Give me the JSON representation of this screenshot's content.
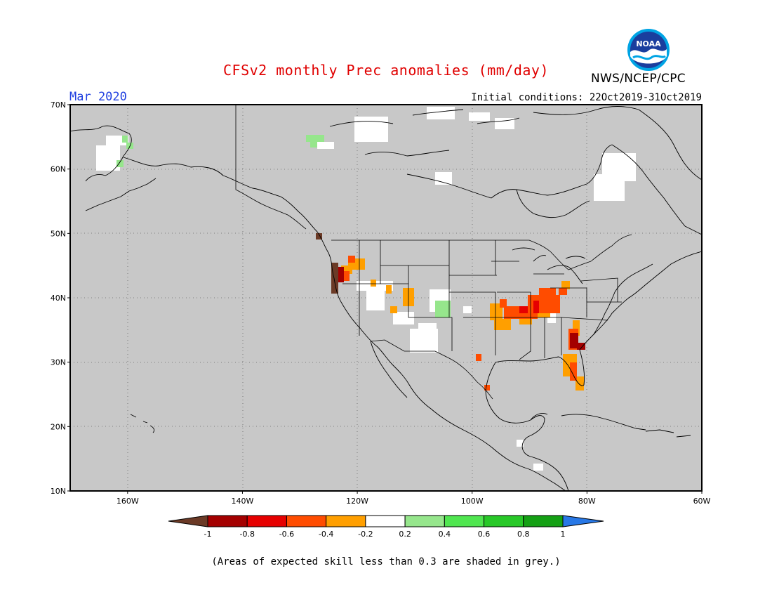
{
  "header": {
    "title": "CFSv2 monthly Prec anomalies (mm/day)",
    "org": "NWS/NCEP/CPC",
    "logo_text": "NOAA",
    "month": "Mar 2020",
    "initial_conditions": "Initial conditions: 22Oct2019-31Oct2019"
  },
  "map": {
    "lon_range": [
      -170,
      -60
    ],
    "lat_range": [
      10,
      70
    ],
    "lat_labels": [
      "70N",
      "60N",
      "50N",
      "40N",
      "30N",
      "20N",
      "10N"
    ],
    "lon_labels": [
      "160W",
      "140W",
      "120W",
      "100W",
      "80W",
      "60W"
    ],
    "skill_mask_color": "#c8c8c8",
    "gridlines": "dotted"
  },
  "colorbar": {
    "ticks": [
      "-1",
      "-0.8",
      "-0.6",
      "-0.4",
      "-0.2",
      "0.2",
      "0.4",
      "0.6",
      "0.8",
      "1"
    ],
    "colors": [
      "#6b3a26",
      "#a40000",
      "#e60000",
      "#ff4c00",
      "#ff9f00",
      "#ffffff",
      "#96e68c",
      "#50e650",
      "#28c828",
      "#14a014",
      "#2878e6"
    ]
  },
  "footnote": "(Areas of expected skill less than 0.3 are shaded in grey.)"
}
